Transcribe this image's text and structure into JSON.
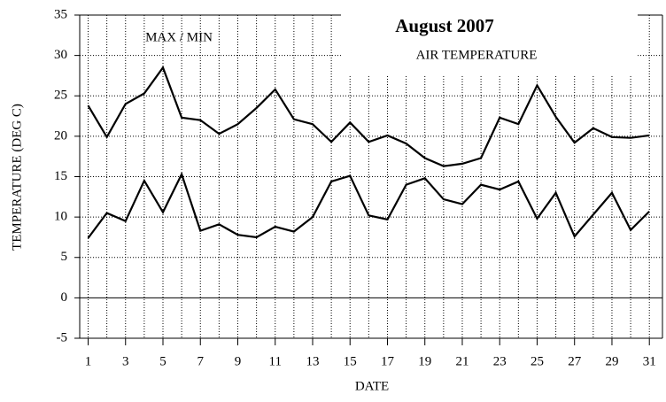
{
  "chart_data": {
    "type": "line",
    "title": "August 2007",
    "subtitle": "AIR TEMPERATURE",
    "annotation": "MAX / MIN",
    "x_label": "DATE",
    "y_label": "TEMPERATURE (DEG C)",
    "x": [
      1,
      2,
      3,
      4,
      5,
      6,
      7,
      8,
      9,
      10,
      11,
      12,
      13,
      14,
      15,
      16,
      17,
      18,
      19,
      20,
      21,
      22,
      23,
      24,
      25,
      26,
      27,
      28,
      29,
      30,
      31
    ],
    "series": [
      {
        "color": "#000000",
        "values": [
          23.8,
          19.9,
          24,
          25.3,
          28.5,
          22.3,
          22,
          20.3,
          21.5,
          23.5,
          25.8,
          22.1,
          21.5,
          19.3,
          21.7,
          19.3,
          20.1,
          19.1,
          17.3,
          16.3,
          16.6,
          17.3,
          22.3,
          21.5,
          26.3,
          22.4,
          19.2,
          21,
          19.9,
          19.8,
          20.1
        ]
      },
      {
        "color": "#000000",
        "values": [
          7.4,
          10.5,
          9.5,
          14.5,
          10.6,
          15.3,
          8.3,
          9.1,
          7.8,
          7.5,
          8.8,
          8.2,
          10,
          14.4,
          15.1,
          10.2,
          9.7,
          14,
          14.8,
          12.2,
          11.6,
          14,
          13.4,
          14.4,
          9.8,
          13,
          7.6,
          10.3,
          13,
          8.4,
          10.7
        ]
      }
    ],
    "xlim": [
      0.55,
      31.7
    ],
    "xticks": [
      1,
      3,
      5,
      7,
      9,
      11,
      13,
      15,
      17,
      19,
      21,
      23,
      25,
      27,
      29,
      31
    ],
    "ylim": [
      -5,
      35
    ],
    "yticks": [
      -5,
      0,
      5,
      10,
      15,
      20,
      25,
      30,
      35
    ],
    "grid": true
  }
}
